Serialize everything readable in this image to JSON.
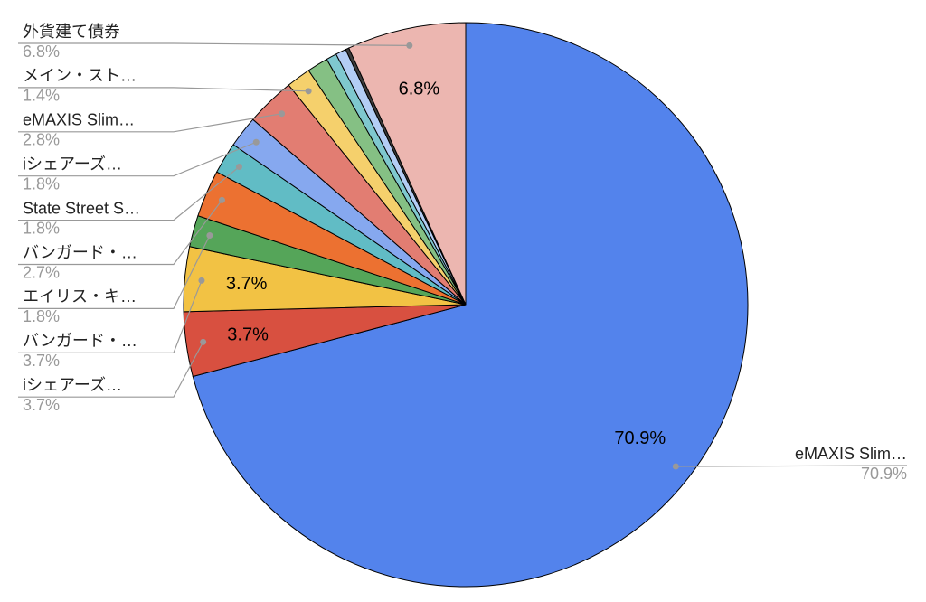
{
  "chart_data": {
    "type": "pie",
    "categories": [
      "eMAXIS Slim…",
      "iシェアーズ…",
      "バンガード・…",
      "エイリス・キ…",
      "バンガード・…",
      "State Street S…",
      "iシェアーズ…",
      "eMAXIS Slim…",
      "メイン・スト…",
      null,
      null,
      null,
      null,
      "外貨建て債券"
    ],
    "values": [
      70.9,
      3.7,
      3.7,
      1.8,
      2.7,
      1.8,
      1.8,
      2.8,
      1.4,
      1.2,
      0.6,
      0.6,
      0.2,
      6.8
    ],
    "value_labels": [
      "70.9%",
      "3.7%",
      "3.7%",
      "1.8%",
      "2.7%",
      "1.8%",
      "1.8%",
      "2.8%",
      "1.4%",
      null,
      null,
      null,
      null,
      "6.8%"
    ],
    "colors": [
      "#5383ec",
      "#d85040",
      "#f2c244",
      "#55a559",
      "#ec7131",
      "#61bcc5",
      "#86a8ef",
      "#e27d72",
      "#f5d06c",
      "#85c084",
      "#7fc8cf",
      "#b3cdf5",
      "#3b3b3b",
      "#ecb6b0"
    ]
  }
}
